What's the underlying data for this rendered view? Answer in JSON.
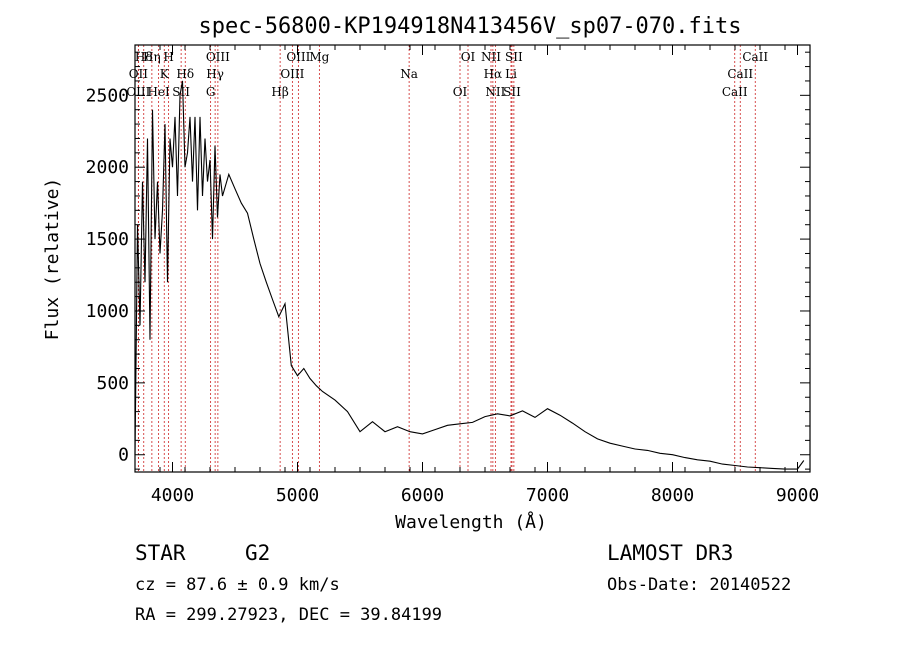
{
  "chart_data": {
    "type": "line",
    "title": "spec-56800-KP194918N413456V_sp07-070.fits",
    "xlabel": "Wavelength (Å)",
    "ylabel": "Flux (relative)",
    "xlim": [
      3700,
      9100
    ],
    "ylim": [
      -120,
      2850
    ],
    "xticks": [
      4000,
      5000,
      6000,
      7000,
      8000,
      9000
    ],
    "yticks": [
      0,
      500,
      1000,
      1500,
      2000,
      2500
    ],
    "series": [
      {
        "name": "flux",
        "x": [
          3700,
          3720,
          3740,
          3760,
          3780,
          3800,
          3820,
          3840,
          3860,
          3880,
          3900,
          3920,
          3940,
          3960,
          3980,
          4000,
          4020,
          4040,
          4060,
          4080,
          4100,
          4120,
          4140,
          4160,
          4180,
          4200,
          4220,
          4240,
          4260,
          4280,
          4300,
          4320,
          4340,
          4360,
          4380,
          4400,
          4450,
          4500,
          4550,
          4600,
          4650,
          4700,
          4750,
          4800,
          4850,
          4900,
          4950,
          5000,
          5050,
          5100,
          5150,
          5200,
          5300,
          5400,
          5500,
          5600,
          5700,
          5800,
          5900,
          6000,
          6100,
          6200,
          6300,
          6400,
          6500,
          6600,
          6700,
          6800,
          6900,
          7000,
          7100,
          7200,
          7300,
          7400,
          7500,
          7600,
          7700,
          7800,
          7900,
          8000,
          8100,
          8200,
          8300,
          8400,
          8500,
          8600,
          8700,
          8800,
          8900,
          9000,
          9050
        ],
        "y": [
          0,
          1600,
          900,
          1900,
          1200,
          2200,
          800,
          2400,
          1500,
          1900,
          1400,
          1700,
          2300,
          1200,
          2200,
          2000,
          2350,
          1800,
          2500,
          2600,
          2000,
          2100,
          2350,
          1900,
          2350,
          1700,
          2350,
          1800,
          2200,
          1900,
          2050,
          1500,
          2150,
          1650,
          1950,
          1800,
          1950,
          1850,
          1750,
          1680,
          1500,
          1330,
          1200,
          1080,
          960,
          1050,
          620,
          550,
          600,
          530,
          480,
          440,
          380,
          300,
          160,
          230,
          160,
          195,
          160,
          145,
          175,
          205,
          215,
          225,
          265,
          285,
          270,
          305,
          260,
          320,
          275,
          220,
          160,
          110,
          80,
          60,
          40,
          30,
          10,
          0,
          -20,
          -35,
          -45,
          -65,
          -75,
          -85,
          -90,
          -95,
          -100,
          -100,
          -40
        ]
      }
    ],
    "lines": [
      {
        "label": "Hδ",
        "wave": 3770
      },
      {
        "label": "OII",
        "wave": 3727
      },
      {
        "label": "OIII",
        "wave": 3727
      },
      {
        "label": "Hη",
        "wave": 3835
      },
      {
        "label": "K",
        "wave": 3934
      },
      {
        "label": "HeI",
        "wave": 3889
      },
      {
        "label": "H",
        "wave": 3969
      },
      {
        "label": "Hδ",
        "wave": 4102
      },
      {
        "label": "SII",
        "wave": 4069
      },
      {
        "label": "OIII",
        "wave": 4363
      },
      {
        "label": "Hγ",
        "wave": 4341
      },
      {
        "label": "G",
        "wave": 4305
      },
      {
        "label": "OIII",
        "wave": 5007
      },
      {
        "label": "OIII",
        "wave": 4959
      },
      {
        "label": "Hβ",
        "wave": 4861
      },
      {
        "label": "Mg",
        "wave": 5175
      },
      {
        "label": "Na",
        "wave": 5893
      },
      {
        "label": "OI",
        "wave": 6300
      },
      {
        "label": "OI",
        "wave": 6364
      },
      {
        "label": "Hα",
        "wave": 6563
      },
      {
        "label": "SII",
        "wave": 6716
      },
      {
        "label": "NII",
        "wave": 6548
      },
      {
        "label": "Li",
        "wave": 6708
      },
      {
        "label": "NII",
        "wave": 6583
      },
      {
        "label": "SII",
        "wave": 6731
      },
      {
        "label": "CaII",
        "wave": 8542
      },
      {
        "label": "CaII",
        "wave": 8498
      },
      {
        "label": "CaII",
        "wave": 8662
      }
    ]
  },
  "info": {
    "object_class": "STAR",
    "subclass": "G2",
    "cz": "cz = 87.6 ± 0.9 km/s",
    "coords": "RA = 299.27923, DEC =  39.84199",
    "survey": "LAMOST DR3",
    "obs_date": "Obs-Date: 20140522"
  },
  "colors": {
    "line": "#000000",
    "marker": "#cc2222",
    "background": "#ffffff"
  }
}
